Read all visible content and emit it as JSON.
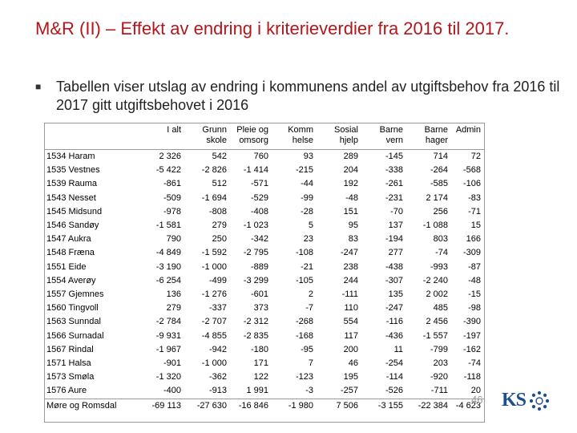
{
  "slide": {
    "title": "M&R (II) – Effekt av endring i kriterieverdier fra 2016 til 2017.",
    "bullet": "Tabellen viser utslag av endring i kommunens andel av utgiftsbehov fra 2016 til 2017 gitt utgiftsbehovet i 2016",
    "page_number": "46",
    "logo_text": "KS",
    "colors": {
      "title": "#b3161b",
      "logo": "#1f4e8c"
    }
  },
  "table": {
    "headers": [
      "",
      "I alt",
      "Grunn skole",
      "Pleie og omsorg",
      "Komm helse",
      "Sosial hjelp",
      "Barne vern",
      "Barne hager",
      "Admin"
    ],
    "rows": [
      [
        "1534 Haram",
        "2 326",
        "542",
        "760",
        "93",
        "289",
        "-145",
        "714",
        "72"
      ],
      [
        "1535 Vestnes",
        "-5 422",
        "-2 826",
        "-1 414",
        "-215",
        "204",
        "-338",
        "-264",
        "-568"
      ],
      [
        "1539 Rauma",
        "-861",
        "512",
        "-571",
        "-44",
        "192",
        "-261",
        "-585",
        "-106"
      ],
      [
        "1543 Nesset",
        "-509",
        "-1 694",
        "-529",
        "-99",
        "-48",
        "-231",
        "2 174",
        "-83"
      ],
      [
        "1545 Midsund",
        "-978",
        "-808",
        "-408",
        "-28",
        "151",
        "-70",
        "256",
        "-71"
      ],
      [
        "1546 Sandøy",
        "-1 581",
        "279",
        "-1 023",
        "5",
        "95",
        "137",
        "-1 088",
        "15"
      ],
      [
        "1547 Aukra",
        "790",
        "250",
        "-342",
        "23",
        "83",
        "-194",
        "803",
        "166"
      ],
      [
        "1548 Fræna",
        "-4 849",
        "-1 592",
        "-2 795",
        "-108",
        "-247",
        "277",
        "-74",
        "-309"
      ],
      [
        "1551 Eide",
        "-3 190",
        "-1 000",
        "-889",
        "-21",
        "238",
        "-438",
        "-993",
        "-87"
      ],
      [
        "1554 Averøy",
        "-6 254",
        "-499",
        "-3 299",
        "-105",
        "244",
        "-307",
        "-2 240",
        "-48"
      ],
      [
        "1557 Gjemnes",
        "136",
        "-1 276",
        "-601",
        "2",
        "-111",
        "135",
        "2 002",
        "-15"
      ],
      [
        "1560 Tingvoll",
        "279",
        "-337",
        "373",
        "-7",
        "110",
        "-247",
        "485",
        "-98"
      ],
      [
        "1563 Sunndal",
        "-2 784",
        "-2 707",
        "-2 312",
        "-268",
        "554",
        "-116",
        "2 456",
        "-390"
      ],
      [
        "1566 Surnadal",
        "-9 931",
        "-4 855",
        "-2 835",
        "-168",
        "117",
        "-436",
        "-1 557",
        "-197"
      ],
      [
        "1567 Rindal",
        "-1 967",
        "-942",
        "-180",
        "-95",
        "200",
        "11",
        "-799",
        "-162"
      ],
      [
        "1571 Halsa",
        "-901",
        "-1 000",
        "171",
        "7",
        "46",
        "-254",
        "203",
        "-74"
      ],
      [
        "1573 Smøla",
        "-1 320",
        "-362",
        "122",
        "-123",
        "195",
        "-114",
        "-920",
        "-118"
      ],
      [
        "1576 Aure",
        "-400",
        "-913",
        "1 991",
        "-3",
        "-257",
        "-526",
        "-711",
        "20"
      ]
    ],
    "total": [
      "Møre og Romsdal",
      "-69 113",
      "-27 630",
      "-16 846",
      "-1 980",
      "7 506",
      "-3 155",
      "-22 384",
      "-4 623"
    ]
  }
}
